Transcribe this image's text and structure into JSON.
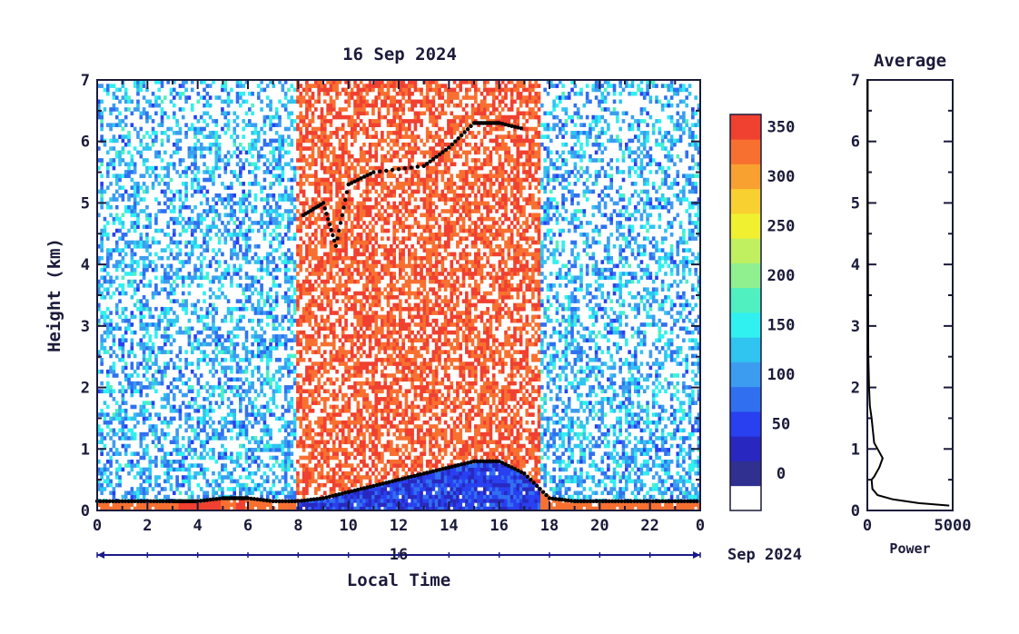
{
  "chart_data": [
    {
      "type": "heatmap",
      "title": "16 Sep 2024",
      "xlabel": "Local Time",
      "ylabel": "Height (km)",
      "xlim": [
        0,
        24
      ],
      "ylim": [
        0,
        7
      ],
      "xticks": [
        "0",
        "2",
        "4",
        "6",
        "8",
        "10",
        "12",
        "14",
        "16",
        "18",
        "20",
        "22",
        "0"
      ],
      "yticks": [
        "0",
        "1",
        "2",
        "3",
        "4",
        "5",
        "6",
        "7"
      ],
      "date_bar": {
        "day": "16",
        "month_year": "Sep 2024"
      },
      "colorbar": {
        "ticks": [
          "0",
          "50",
          "100",
          "150",
          "200",
          "250",
          "300",
          "350"
        ],
        "levels": [
          0,
          25,
          50,
          75,
          100,
          125,
          150,
          175,
          200,
          225,
          250,
          275,
          300,
          325,
          350,
          375
        ],
        "colors": [
          "#303090",
          "#2828c0",
          "#2840f0",
          "#3070f0",
          "#3c9cf0",
          "#30c4f0",
          "#30f0f0",
          "#50f0c0",
          "#90f090",
          "#c0f060",
          "#f0f030",
          "#f8d030",
          "#f8a030",
          "#f87030",
          "#f04030",
          "#f03030"
        ],
        "below_min_color": "#ffffff"
      },
      "highlights": [
        {
          "kind": "boundary_layer_height_km",
          "x": [
            0,
            1,
            2,
            3,
            3.5,
            4,
            5,
            5.5,
            6,
            7,
            8,
            9,
            10,
            11,
            12,
            13,
            14,
            15,
            16,
            17,
            18,
            19,
            20,
            21,
            22,
            23,
            24
          ],
          "y": [
            0.15,
            0.15,
            0.15,
            0.15,
            0.15,
            0.15,
            0.2,
            0.2,
            0.2,
            0.15,
            0.15,
            0.2,
            0.3,
            0.4,
            0.5,
            0.6,
            0.7,
            0.8,
            0.8,
            0.6,
            0.2,
            0.15,
            0.15,
            0.15,
            0.15,
            0.15,
            0.15
          ]
        },
        {
          "kind": "top_layer_km",
          "x": [
            8.2,
            9,
            9.5,
            10,
            11,
            13,
            14,
            15,
            15.5,
            16,
            17
          ],
          "y": [
            4.8,
            5.0,
            4.3,
            5.3,
            5.5,
            5.6,
            5.9,
            6.3,
            6.3,
            6.3,
            6.2
          ]
        }
      ]
    },
    {
      "type": "line",
      "title": "Average",
      "xlabel": "Power",
      "ylabel": "",
      "xlim": [
        0,
        5000
      ],
      "ylim": [
        0,
        7
      ],
      "xticks": [
        "0",
        "5000"
      ],
      "yticks": [
        "0",
        "1",
        "2",
        "3",
        "4",
        "5",
        "6",
        "7"
      ],
      "series": [
        {
          "x": [
            4800,
            3000,
            1500,
            600,
            300,
            250,
            400,
            500,
            700,
            900,
            700,
            400,
            250,
            150,
            100,
            60,
            40,
            30,
            20,
            20
          ],
          "y": [
            0.08,
            0.12,
            0.18,
            0.25,
            0.35,
            0.5,
            0.55,
            0.6,
            0.7,
            0.85,
            0.95,
            1.1,
            1.5,
            1.7,
            2.0,
            2.5,
            3.5,
            4.5,
            5.5,
            7.0
          ]
        }
      ]
    }
  ]
}
